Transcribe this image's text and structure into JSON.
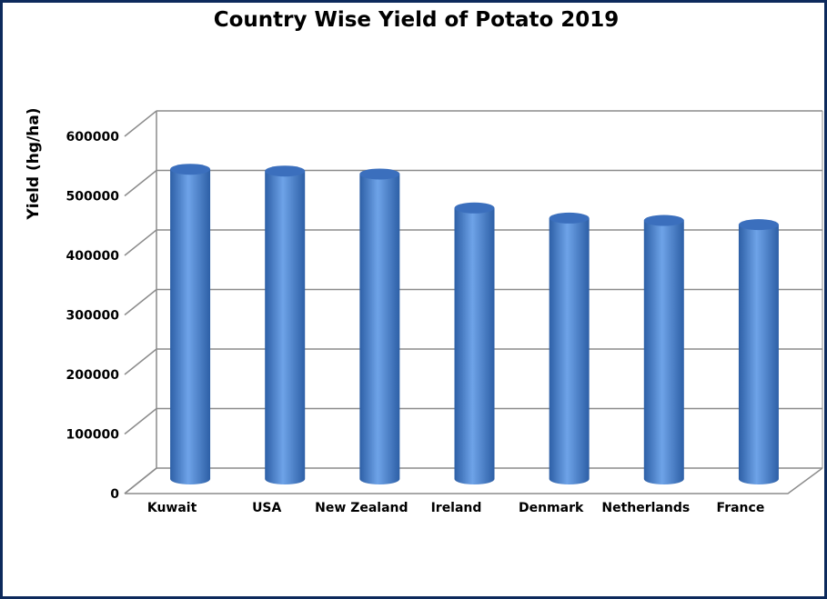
{
  "chart_data": {
    "type": "bar",
    "title": "Country Wise Yield of Potato 2019",
    "xlabel": "",
    "ylabel": "Yield (hg/ha)",
    "categories": [
      "Kuwait",
      "USA",
      "New Zealand",
      "Ireland",
      "Denmark",
      "Netherlands",
      "France"
    ],
    "values": [
      505000,
      502000,
      497000,
      440000,
      423000,
      419000,
      412000
    ],
    "ylim": [
      0,
      600000
    ],
    "yticks": [
      "0",
      "100000",
      "200000",
      "300000",
      "400000",
      "500000",
      "600000"
    ],
    "grid": true,
    "legend": "none",
    "colors": {
      "bar_main": "#4f86d4",
      "bar_light": "#6ea3e8",
      "bar_dark": "#2d5fa6",
      "bar_top": "#3b6fbd",
      "grid": "#8c8c8c",
      "frame_border": "#0d2a5c"
    }
  }
}
